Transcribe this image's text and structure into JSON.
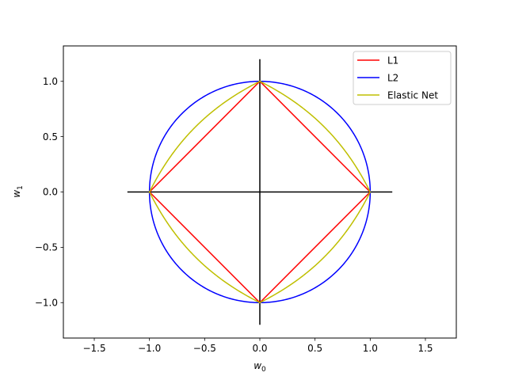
{
  "chart_data": {
    "type": "line",
    "title": "",
    "xlabel": "w",
    "xlabel_sub": "0",
    "ylabel": "w",
    "ylabel_sub": "1",
    "xlim": [
      -1.78,
      1.78
    ],
    "ylim": [
      -1.32,
      1.32
    ],
    "xticks": [
      -1.5,
      -1.0,
      -0.5,
      0.0,
      0.5,
      1.0,
      1.5
    ],
    "xtick_labels": [
      "−1.5",
      "−1.0",
      "−0.5",
      "0.0",
      "0.5",
      "1.0",
      "1.5"
    ],
    "yticks": [
      -1.0,
      -0.5,
      0.0,
      0.5,
      1.0
    ],
    "ytick_labels": [
      "−1.0",
      "−0.5",
      "0.0",
      "0.5",
      "1.0"
    ],
    "grid": false,
    "legend_position": "top-right",
    "axes_lines": {
      "color": "#000000",
      "horizontal": {
        "x": [
          -1.2,
          1.2
        ],
        "y": [
          0,
          0
        ]
      },
      "vertical": {
        "x": [
          0,
          0
        ],
        "y": [
          -1.2,
          1.2
        ]
      }
    },
    "series": [
      {
        "name": "L1",
        "color": "#ff0000",
        "shape": "diamond",
        "x": [
          1,
          0,
          -1,
          0,
          1
        ],
        "y": [
          0,
          1,
          0,
          -1,
          0
        ]
      },
      {
        "name": "L2",
        "color": "#0000ff",
        "shape": "circle",
        "radius": 1
      },
      {
        "name": "Elastic Net",
        "color": "#bfbf00",
        "shape": "elastic-net",
        "alpha": 0.5
      }
    ]
  }
}
